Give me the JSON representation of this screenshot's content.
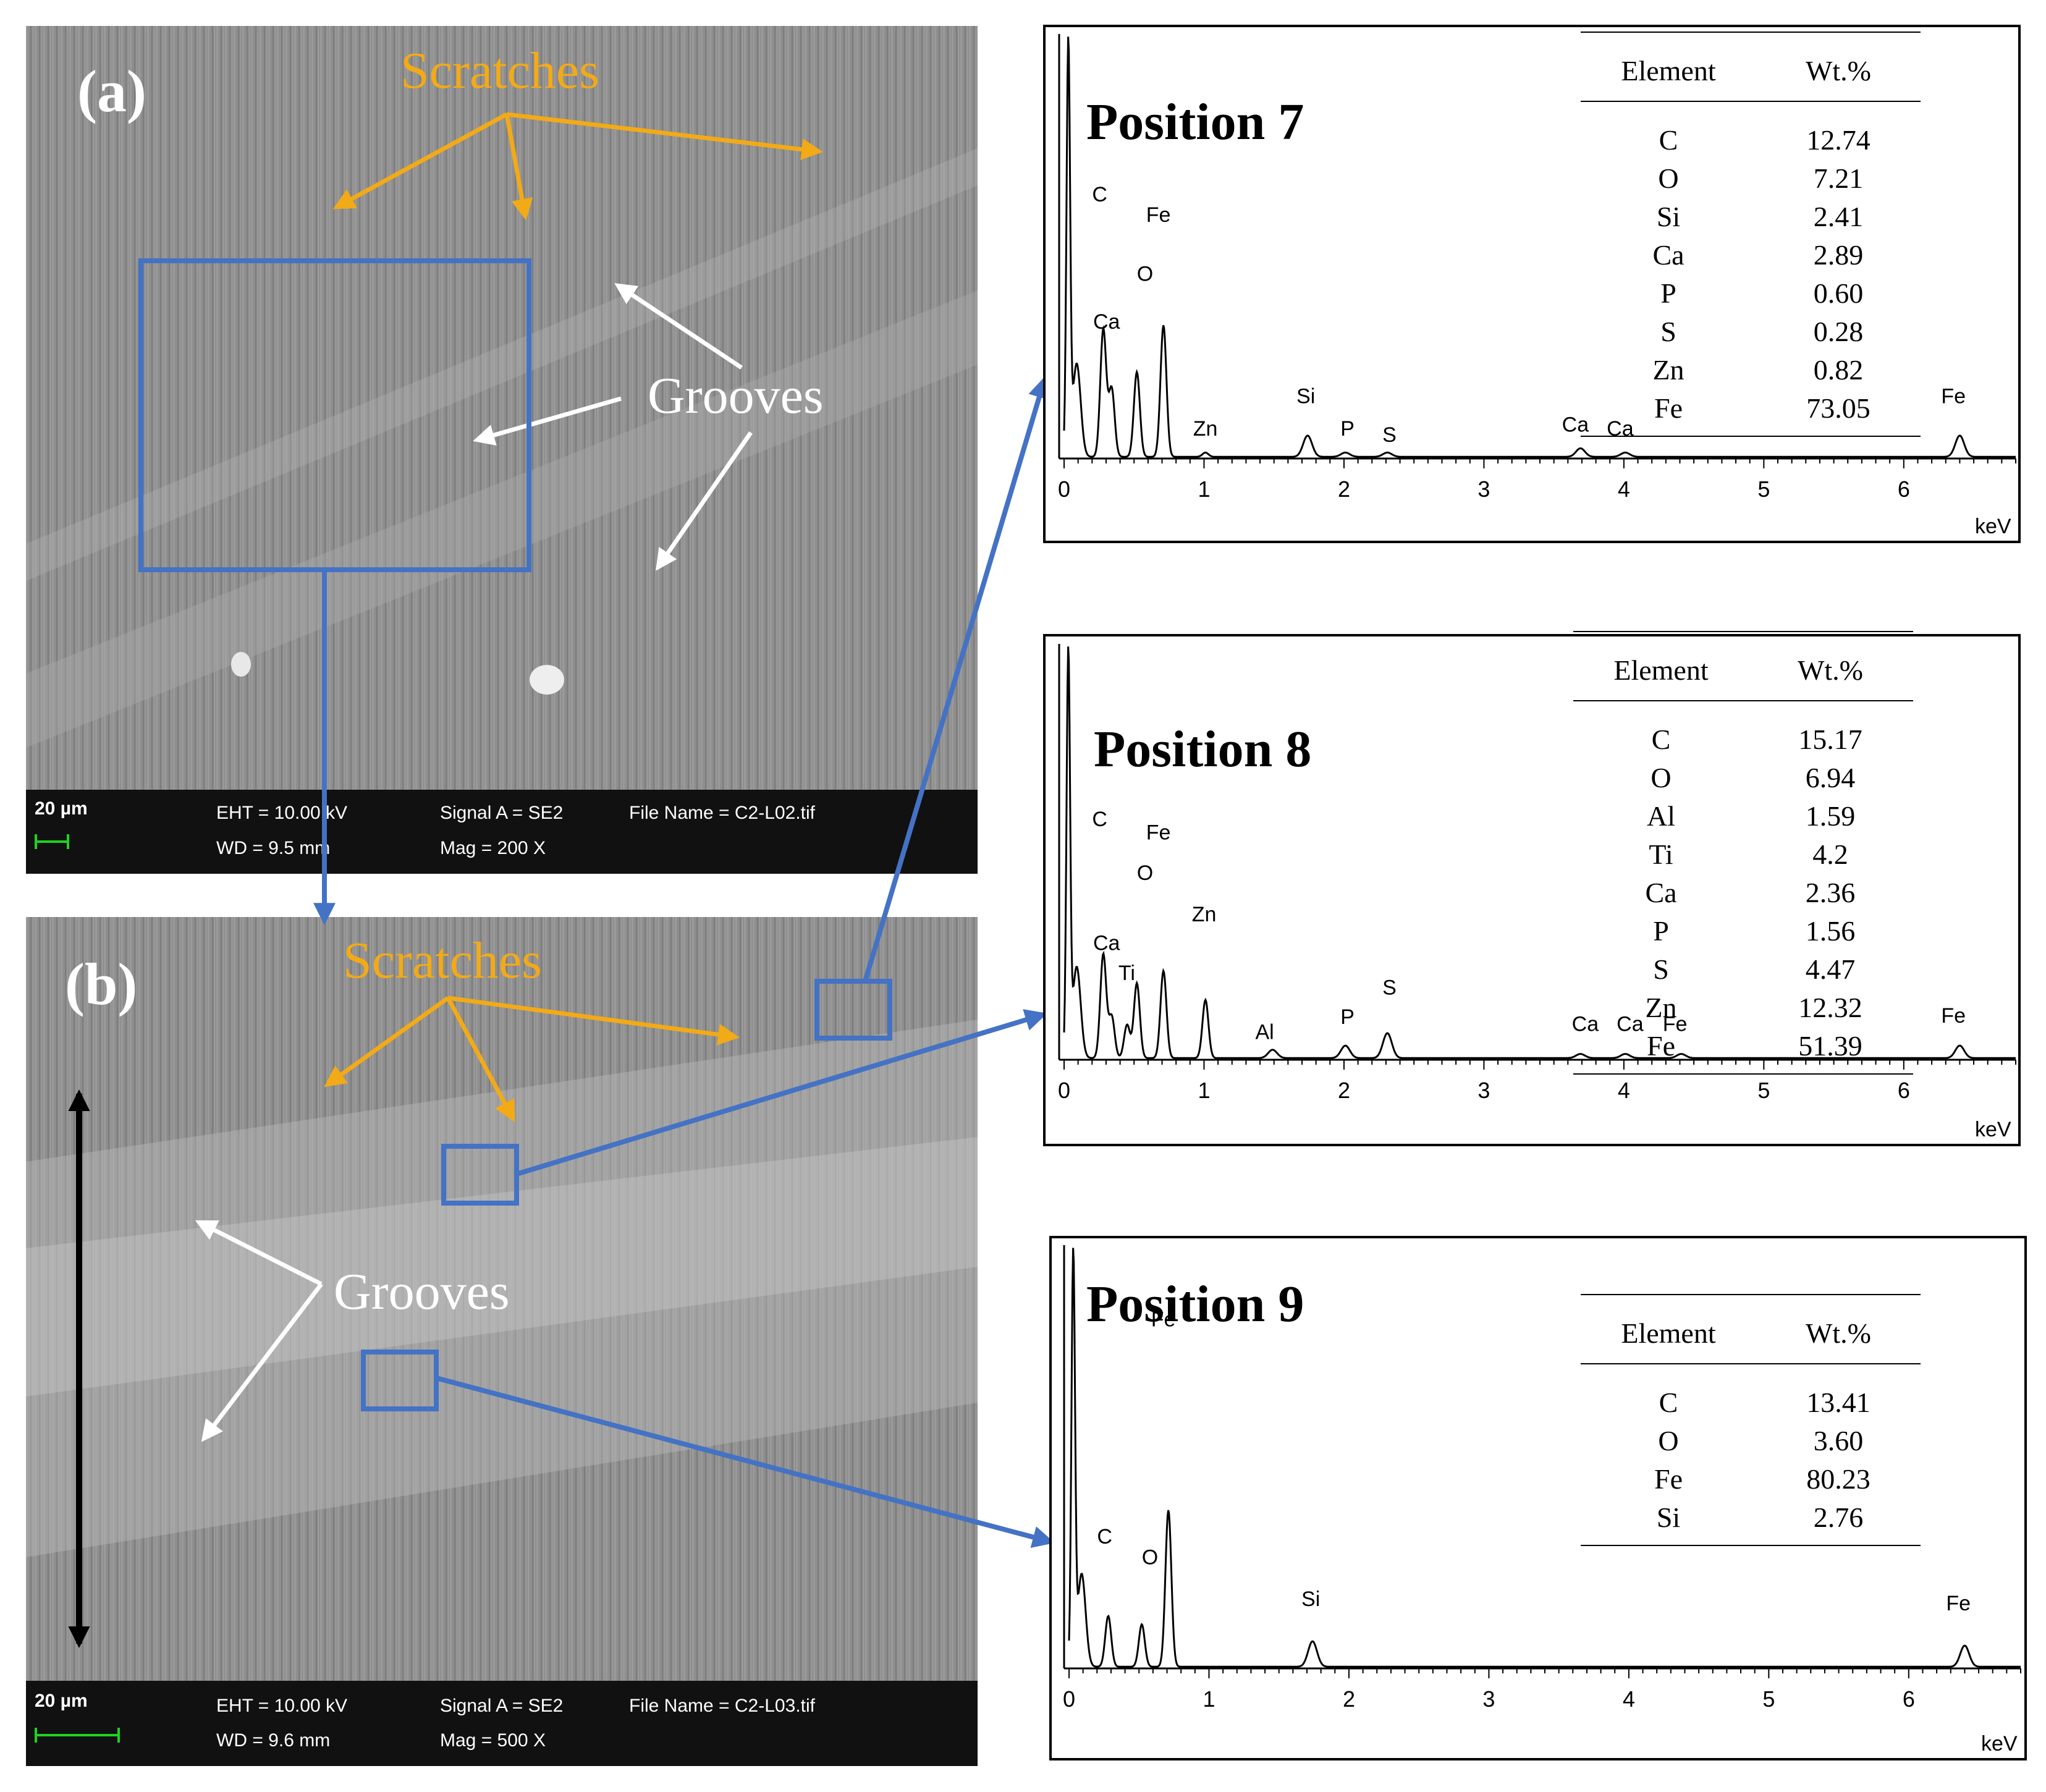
{
  "sem": [
    {
      "label": "(a)",
      "scale": "20 µm",
      "eht": "EHT = 10.00 kV",
      "wd": "WD =  9.5 mm",
      "signal": "Signal A = SE2",
      "mag": "Mag =    200 X",
      "file": "File Name = C2-L02.tif",
      "scratches": "Scratches",
      "grooves": "Grooves"
    },
    {
      "label": "(b)",
      "scale": "20 µm",
      "eht": "EHT = 10.00 kV",
      "wd": "WD =  9.6 mm",
      "signal": "Signal A = SE2",
      "mag": "Mag =    500 X",
      "file": "File Name = C2-L03.tif",
      "scratches": "Scratches",
      "grooves": "Grooves"
    }
  ],
  "colors": {
    "orange": "#f2aa17",
    "blue": "#4472c4",
    "white": "#ffffff",
    "black": "#000000"
  },
  "chart_data": [
    {
      "type": "line",
      "title": "Position 7",
      "xlabel": "keV",
      "xlim": [
        0,
        6.8
      ],
      "x_ticks": [
        "0",
        "1",
        "2",
        "3",
        "4",
        "5",
        "6"
      ],
      "table": {
        "headers": [
          "Element",
          "Wt.%"
        ],
        "rows": [
          [
            "C",
            "12.74"
          ],
          [
            "O",
            "7.21"
          ],
          [
            "Si",
            "2.41"
          ],
          [
            "Ca",
            "2.89"
          ],
          [
            "P",
            "0.60"
          ],
          [
            "S",
            "0.28"
          ],
          [
            "Zn",
            "0.82"
          ],
          [
            "Fe",
            "73.05"
          ]
        ]
      },
      "peaks": [
        {
          "label": "C",
          "x": 0.28,
          "y": 0.3
        },
        {
          "label": "Ca",
          "x": 0.34,
          "y": 0.16
        },
        {
          "label": "O",
          "x": 0.52,
          "y": 0.2
        },
        {
          "label": "Fe",
          "x": 0.71,
          "y": 0.31
        },
        {
          "label": "Zn",
          "x": 1.01,
          "y": 0.01
        },
        {
          "label": "Si",
          "x": 1.74,
          "y": 0.05
        },
        {
          "label": "P",
          "x": 2.01,
          "y": 0.01
        },
        {
          "label": "S",
          "x": 2.31,
          "y": 0.01
        },
        {
          "label": "Ca",
          "x": 3.69,
          "y": 0.02
        },
        {
          "label": "Ca",
          "x": 4.01,
          "y": 0.01
        },
        {
          "label": "Fe",
          "x": 6.4,
          "y": 0.05
        }
      ]
    },
    {
      "type": "line",
      "title": "Position 8",
      "xlabel": "keV",
      "xlim": [
        0,
        6.8
      ],
      "x_ticks": [
        "0",
        "1",
        "2",
        "3",
        "4",
        "5",
        "6"
      ],
      "table": {
        "headers": [
          "Element",
          "Wt.%"
        ],
        "rows": [
          [
            "C",
            "15.17"
          ],
          [
            "O",
            "6.94"
          ],
          [
            "Al",
            "1.59"
          ],
          [
            "Ti",
            "4.2"
          ],
          [
            "Ca",
            "2.36"
          ],
          [
            "P",
            "1.56"
          ],
          [
            "S",
            "4.47"
          ],
          [
            "Zn",
            "12.32"
          ],
          [
            "Fe",
            "51.39"
          ]
        ]
      },
      "peaks": [
        {
          "label": "C",
          "x": 0.28,
          "y": 0.25
        },
        {
          "label": "Ca",
          "x": 0.34,
          "y": 0.1
        },
        {
          "label": "Ti",
          "x": 0.45,
          "y": 0.08
        },
        {
          "label": "O",
          "x": 0.52,
          "y": 0.18
        },
        {
          "label": "Fe",
          "x": 0.71,
          "y": 0.21
        },
        {
          "label": "Zn",
          "x": 1.01,
          "y": 0.14
        },
        {
          "label": "Al",
          "x": 1.49,
          "y": 0.02
        },
        {
          "label": "P",
          "x": 2.01,
          "y": 0.03
        },
        {
          "label": "S",
          "x": 2.31,
          "y": 0.06
        },
        {
          "label": "Ca",
          "x": 3.69,
          "y": 0.01
        },
        {
          "label": "Ca",
          "x": 4.01,
          "y": 0.01
        },
        {
          "label": "Fe",
          "x": 4.41,
          "y": 0.01
        },
        {
          "label": "Fe",
          "x": 6.4,
          "y": 0.03
        }
      ]
    },
    {
      "type": "line",
      "title": "Position 9",
      "xlabel": "keV",
      "xlim": [
        0,
        6.8
      ],
      "x_ticks": [
        "0",
        "1",
        "2",
        "3",
        "4",
        "5",
        "6"
      ],
      "table": {
        "headers": [
          "Element",
          "Wt.%"
        ],
        "rows": [
          [
            "C",
            "13.41"
          ],
          [
            "O",
            "3.60"
          ],
          [
            "Fe",
            "80.23"
          ],
          [
            "Si",
            "2.76"
          ]
        ]
      },
      "peaks": [
        {
          "label": "C",
          "x": 0.28,
          "y": 0.12
        },
        {
          "label": "O",
          "x": 0.52,
          "y": 0.1
        },
        {
          "label": "Fe",
          "x": 0.71,
          "y": 0.37
        },
        {
          "label": "Si",
          "x": 1.74,
          "y": 0.06
        },
        {
          "label": "Fe",
          "x": 6.4,
          "y": 0.05
        }
      ]
    }
  ]
}
